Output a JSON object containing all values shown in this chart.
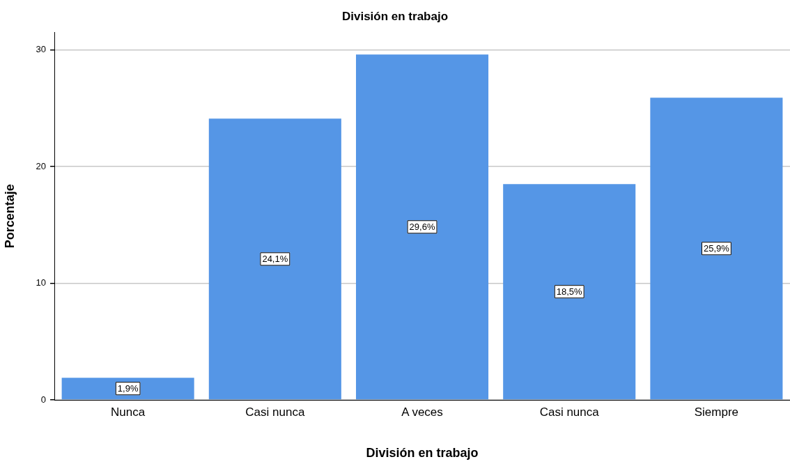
{
  "chart_data": {
    "type": "bar",
    "title": "División en trabajo",
    "xlabel": "División en trabajo",
    "ylabel": "Porcentaje",
    "categories": [
      "Nunca",
      "Casi nunca",
      "A veces",
      "Casi nunca",
      "Siempre"
    ],
    "values": [
      1.9,
      24.1,
      29.6,
      18.5,
      25.9
    ],
    "value_labels": [
      "1,9%",
      "24,1%",
      "29,6%",
      "18,5%",
      "25,9%"
    ],
    "color": "#5596e6",
    "ylim": [
      0,
      31.5
    ],
    "yticks": [
      0,
      10,
      20,
      30
    ],
    "grid": "y",
    "legend": false
  }
}
